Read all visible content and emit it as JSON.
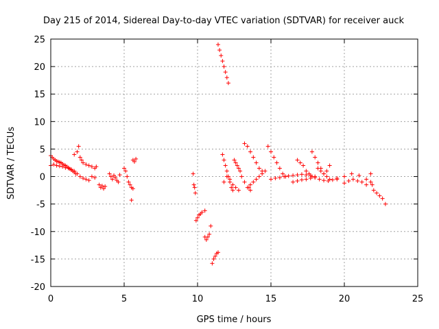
{
  "chart_data": {
    "type": "scatter",
    "title": "Day 215 of 2014, Sidereal Day-to-day VTEC variation (SDTVAR) for receiver auck",
    "xlabel": "GPS time / hours",
    "ylabel": "SDTVAR / TECUs",
    "xlim": [
      0,
      25
    ],
    "ylim": [
      -20,
      25
    ],
    "xticks": [
      "0",
      "5",
      "10",
      "15",
      "20",
      "25"
    ],
    "yticks": [
      "-20",
      "-15",
      "-10",
      "-5",
      "0",
      "5",
      "10",
      "15",
      "20",
      "25"
    ],
    "grid": true,
    "marker": "+",
    "marker_color": "#ff0000",
    "series": [
      {
        "name": "SDTVAR",
        "x": [
          0.0,
          0.1,
          0.2,
          0.3,
          0.4,
          0.5,
          0.6,
          0.7,
          0.8,
          0.9,
          1.0,
          1.1,
          1.2,
          1.3,
          1.4,
          1.5,
          1.6,
          1.7,
          0.0,
          0.2,
          0.4,
          0.6,
          0.8,
          1.0,
          1.2,
          1.4,
          1.6,
          1.6,
          1.8,
          1.9,
          2.0,
          2.1,
          2.2,
          2.4,
          2.6,
          2.8,
          3.0,
          3.1,
          1.8,
          2.0,
          2.2,
          2.4,
          2.6,
          2.8,
          3.0,
          3.3,
          3.4,
          3.5,
          3.6,
          3.7,
          4.0,
          4.1,
          4.2,
          4.3,
          4.4,
          4.5,
          4.6,
          4.7,
          5.0,
          5.1,
          5.2,
          5.3,
          5.4,
          5.5,
          5.6,
          5.6,
          5.7,
          5.8,
          5.5,
          9.7,
          9.75,
          9.8,
          9.85,
          9.9,
          10.0,
          10.1,
          10.2,
          10.3,
          10.5,
          10.5,
          10.6,
          10.7,
          10.8,
          10.9,
          11.0,
          11.1,
          11.2,
          11.3,
          11.4,
          11.4,
          11.5,
          11.6,
          11.7,
          11.8,
          11.9,
          12.0,
          12.1,
          11.7,
          11.8,
          11.9,
          12.0,
          12.1,
          12.2,
          12.3,
          12.4,
          11.8,
          12.0,
          12.2,
          12.4,
          12.6,
          12.8,
          12.5,
          12.6,
          12.7,
          12.8,
          12.9,
          13.0,
          13.2,
          13.4,
          13.6,
          13.2,
          13.4,
          13.6,
          13.8,
          14.0,
          14.2,
          14.4,
          13.5,
          13.6,
          13.8,
          14.0,
          14.2,
          14.4,
          14.6,
          14.8,
          15.0,
          15.2,
          15.4,
          15.6,
          15.8,
          16.0,
          15.0,
          15.3,
          15.6,
          15.9,
          16.2,
          16.5,
          16.8,
          17.1,
          17.4,
          17.7,
          18.0,
          16.5,
          16.8,
          17.1,
          17.4,
          17.7,
          18.0,
          18.3,
          18.6,
          18.9,
          19.2,
          19.5,
          16.8,
          17.0,
          17.2,
          17.4,
          17.6,
          17.8,
          17.8,
          18.0,
          18.2,
          18.4,
          18.6,
          18.8,
          18.2,
          18.4,
          18.6,
          18.8,
          19.0,
          19.0,
          19.5,
          20.0,
          20.5,
          21.0,
          21.5,
          21.8,
          20.0,
          20.3,
          20.6,
          20.9,
          21.2,
          21.5,
          21.8,
          21.9,
          22.0,
          22.2,
          22.4,
          22.6,
          22.8
        ],
        "y": [
          3.8,
          3.5,
          3.2,
          3.0,
          2.8,
          2.7,
          2.6,
          2.5,
          2.3,
          2.1,
          2.0,
          1.8,
          1.6,
          1.4,
          1.2,
          1.0,
          0.8,
          0.5,
          2.0,
          2.2,
          2.0,
          1.9,
          1.8,
          1.6,
          1.5,
          1.3,
          1.0,
          4.0,
          4.5,
          5.5,
          3.5,
          3.0,
          2.5,
          2.2,
          2.0,
          1.8,
          1.5,
          1.8,
          0.5,
          0.0,
          -0.3,
          -0.5,
          -0.7,
          0.0,
          -0.2,
          -1.5,
          -2.0,
          -1.7,
          -2.2,
          -1.8,
          0.5,
          0.0,
          -0.5,
          0.2,
          -0.2,
          -0.7,
          -1.0,
          0.3,
          1.5,
          1.0,
          0.0,
          -1.0,
          -1.5,
          -2.0,
          -2.2,
          3.0,
          2.7,
          3.2,
          -4.3,
          0.5,
          -1.5,
          -2.0,
          -3.0,
          -8.0,
          -7.5,
          -7.0,
          -6.8,
          -6.5,
          -6.2,
          -11.0,
          -11.5,
          -11.0,
          -10.5,
          -9.0,
          -15.8,
          -15.0,
          -14.5,
          -14.0,
          -13.8,
          24.0,
          23.0,
          22.0,
          21.0,
          20.0,
          19.0,
          18.0,
          17.0,
          4.0,
          3.0,
          2.0,
          1.0,
          0.0,
          -1.0,
          -2.0,
          -2.5,
          -1.0,
          0.0,
          -0.5,
          -1.5,
          -2.0,
          -2.5,
          3.0,
          2.5,
          2.0,
          1.5,
          1.0,
          0.0,
          -1.0,
          -2.0,
          -2.5,
          6.0,
          5.5,
          4.5,
          3.5,
          2.5,
          1.5,
          1.0,
          -2.0,
          -1.5,
          -1.0,
          -0.5,
          0.0,
          0.5,
          1.0,
          5.5,
          4.5,
          3.5,
          2.5,
          1.5,
          0.5,
          0.0,
          -0.5,
          -0.3,
          -0.2,
          0.0,
          0.1,
          0.2,
          0.3,
          0.4,
          0.3,
          0.2,
          0.0,
          -1.0,
          -0.8,
          -0.6,
          -0.5,
          -0.3,
          -0.2,
          -0.5,
          -0.7,
          -0.8,
          -0.6,
          -0.5,
          3.0,
          2.5,
          2.0,
          1.0,
          0.5,
          0.0,
          4.5,
          3.5,
          2.5,
          1.5,
          0.5,
          0.0,
          1.5,
          1.0,
          0.5,
          1.0,
          2.0,
          -0.5,
          -0.3,
          0.0,
          0.5,
          0.2,
          -0.5,
          -1.0,
          -1.2,
          -0.8,
          -0.5,
          -0.8,
          -1.0,
          -1.5,
          0.5,
          -1.5,
          -2.5,
          -3.0,
          -3.5,
          -4.0,
          -5.0
        ]
      }
    ]
  }
}
